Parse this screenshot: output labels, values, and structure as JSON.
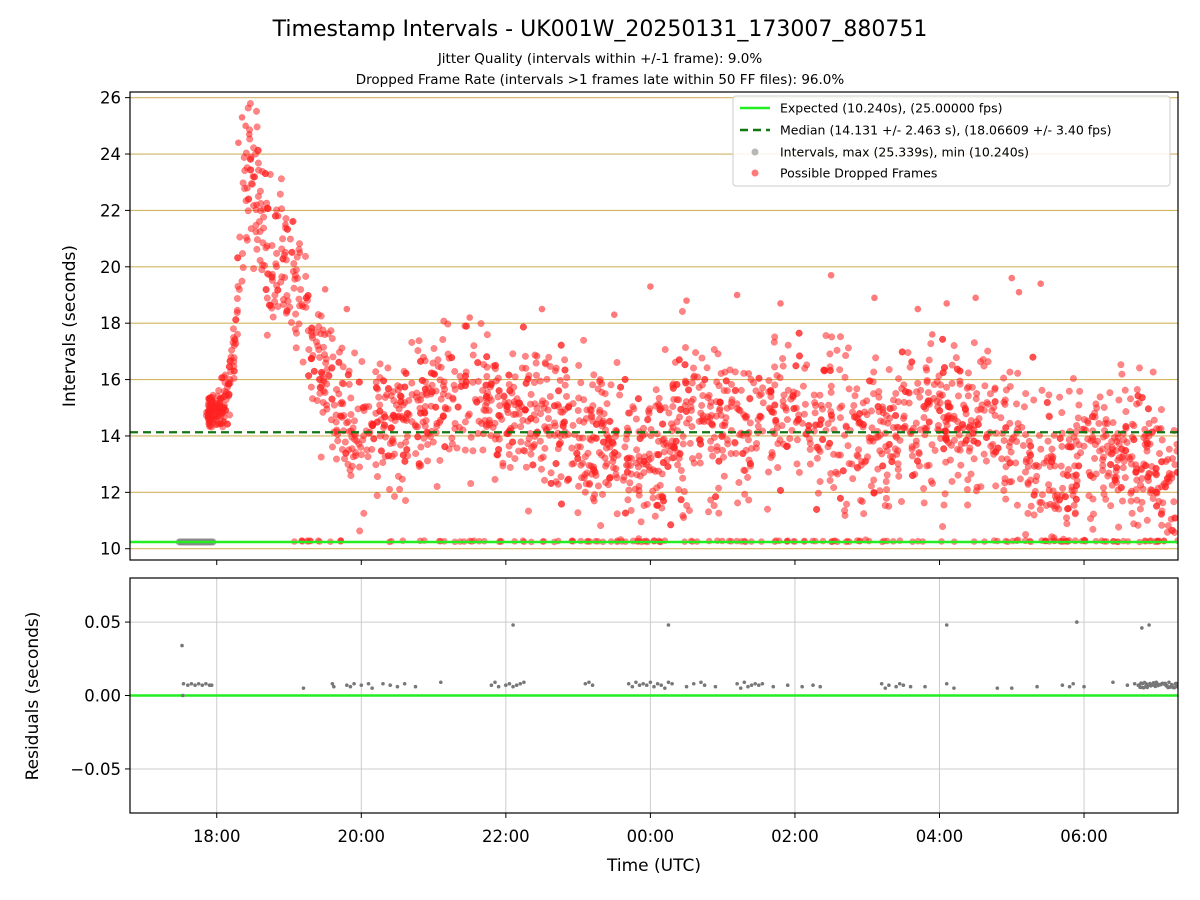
{
  "chart_data": [
    {
      "type": "scatter",
      "title": "Timestamp Intervals - UK001W_20250131_173007_880751",
      "subtitle_lines": [
        "Jitter Quality (intervals within +/-1 frame): 9.0%",
        "Dropped Frame Rate (intervals >1 frames late within 50 FF files): 96.0%"
      ],
      "ylabel": "Intervals (seconds)",
      "xlim": [
        -1.2,
        13.3
      ],
      "ylim": [
        9.6,
        26.2
      ],
      "x_unit": "hours relative to 18:00 UTC on 2025-01-31",
      "yticks": [
        10,
        12,
        14,
        16,
        18,
        20,
        22,
        24,
        26
      ],
      "ytick_labels": [
        "10",
        "12",
        "14",
        "16",
        "18",
        "20",
        "22",
        "24",
        "26"
      ],
      "grid": "horizontal, goldenrod",
      "legend_position": "top-right",
      "legend": [
        {
          "label": "Expected (10.240s), (25.00000 fps)",
          "style": "line",
          "color": "#22ee22"
        },
        {
          "label": "Median (14.131 +/- 2.463 s), (18.06609 +/- 3.40 fps)",
          "style": "dashed",
          "color": "#117711"
        },
        {
          "label": "Intervals, max (25.339s), min (10.240s)",
          "style": "marker",
          "color": "#888888"
        },
        {
          "label": "Possible Dropped Frames",
          "style": "marker",
          "color": "#ff2222"
        }
      ],
      "expected_value": 10.24,
      "median_value": 14.131,
      "normal_interval_span": [
        -0.52,
        -0.05
      ],
      "normal_interval_value": 10.24,
      "dropped_frame_anchors": [
        [
          -0.1,
          14.8
        ],
        [
          0.0,
          15.0
        ],
        [
          0.15,
          15.3
        ],
        [
          0.25,
          17.5
        ],
        [
          0.35,
          21.0
        ],
        [
          0.45,
          24.0
        ],
        [
          0.55,
          22.5
        ],
        [
          0.7,
          20.5
        ],
        [
          0.9,
          20.0
        ],
        [
          1.1,
          19.5
        ],
        [
          1.3,
          18.0
        ],
        [
          1.5,
          16.0
        ],
        [
          1.7,
          15.0
        ],
        [
          2.0,
          14.2
        ],
        [
          2.5,
          14.5
        ],
        [
          3.0,
          15.3
        ],
        [
          3.5,
          15.5
        ],
        [
          4.0,
          14.5
        ],
        [
          4.5,
          14.8
        ],
        [
          5.0,
          14.0
        ],
        [
          5.5,
          13.5
        ],
        [
          6.0,
          13.0
        ],
        [
          6.5,
          14.5
        ],
        [
          7.0,
          14.3
        ],
        [
          7.5,
          14.5
        ],
        [
          8.0,
          15.0
        ],
        [
          8.5,
          14.5
        ],
        [
          9.0,
          14.0
        ],
        [
          9.5,
          14.3
        ],
        [
          10.0,
          14.8
        ],
        [
          10.5,
          14.5
        ],
        [
          11.0,
          13.8
        ],
        [
          11.5,
          13.0
        ],
        [
          12.0,
          13.5
        ],
        [
          12.5,
          13.5
        ],
        [
          13.0,
          13.0
        ],
        [
          13.3,
          12.5
        ]
      ],
      "dropped_frame_spread_anchors": [
        [
          -0.1,
          0.4
        ],
        [
          0.2,
          0.8
        ],
        [
          0.4,
          2.0
        ],
        [
          0.6,
          2.0
        ],
        [
          1.0,
          1.8
        ],
        [
          1.5,
          1.8
        ],
        [
          2.0,
          1.7
        ],
        [
          4.0,
          1.8
        ],
        [
          6.0,
          2.0
        ],
        [
          8.0,
          2.0
        ],
        [
          10.0,
          2.1
        ],
        [
          12.0,
          2.0
        ],
        [
          13.3,
          1.8
        ]
      ],
      "dropped_frame_outliers": [
        [
          0.35,
          25.3
        ],
        [
          0.4,
          25.0
        ],
        [
          0.45,
          24.7
        ],
        [
          0.3,
          24.4
        ],
        [
          0.5,
          23.2
        ],
        [
          0.55,
          22.2
        ],
        [
          0.85,
          21.8
        ],
        [
          0.95,
          21.5
        ],
        [
          1.05,
          21.6
        ],
        [
          1.15,
          20.5
        ],
        [
          1.5,
          19.2
        ],
        [
          1.8,
          18.5
        ],
        [
          3.5,
          18.2
        ],
        [
          4.5,
          18.5
        ],
        [
          5.5,
          18.3
        ],
        [
          6.0,
          19.3
        ],
        [
          6.5,
          18.8
        ],
        [
          7.2,
          19.0
        ],
        [
          7.8,
          18.7
        ],
        [
          8.5,
          19.7
        ],
        [
          9.1,
          18.9
        ],
        [
          9.7,
          18.5
        ],
        [
          10.1,
          18.7
        ],
        [
          10.5,
          18.9
        ],
        [
          11.1,
          19.1
        ],
        [
          11.4,
          19.4
        ],
        [
          11.0,
          19.6
        ],
        [
          9.9,
          17.6
        ]
      ],
      "dropped_frame_count": 2300
    },
    {
      "type": "scatter",
      "ylabel": "Residuals (seconds)",
      "xlabel": "Time (UTC)",
      "xlim": [
        -1.2,
        13.3
      ],
      "ylim": [
        -0.08,
        0.08
      ],
      "yticks": [
        -0.05,
        0.0,
        0.05
      ],
      "ytick_labels": [
        "−0.05",
        "0.00",
        "0.05"
      ],
      "xticks": [
        0,
        2,
        4,
        6,
        8,
        10,
        12
      ],
      "xtick_labels": [
        "18:00",
        "20:00",
        "22:00",
        "00:00",
        "02:00",
        "04:00",
        "06:00"
      ],
      "grid": "both, light gray",
      "zero_line_color": "#22ee22",
      "residual_points": [
        [
          -0.48,
          0.034
        ],
        [
          -0.47,
          0.0
        ],
        [
          -0.46,
          0.008
        ],
        [
          -0.4,
          0.007
        ],
        [
          -0.35,
          0.008
        ],
        [
          -0.3,
          0.007
        ],
        [
          -0.25,
          0.008
        ],
        [
          -0.2,
          0.007
        ],
        [
          -0.15,
          0.008
        ],
        [
          -0.1,
          0.007
        ],
        [
          -0.07,
          0.007
        ],
        [
          1.2,
          0.005
        ],
        [
          1.6,
          0.008
        ],
        [
          1.62,
          0.006
        ],
        [
          1.8,
          0.007
        ],
        [
          1.85,
          0.006
        ],
        [
          1.9,
          0.008
        ],
        [
          2.0,
          0.007
        ],
        [
          2.1,
          0.008
        ],
        [
          2.15,
          0.005
        ],
        [
          2.3,
          0.008
        ],
        [
          2.4,
          0.007
        ],
        [
          2.5,
          0.006
        ],
        [
          2.6,
          0.008
        ],
        [
          2.75,
          0.006
        ],
        [
          3.1,
          0.009
        ],
        [
          3.8,
          0.007
        ],
        [
          3.85,
          0.009
        ],
        [
          3.9,
          0.006
        ],
        [
          4.0,
          0.007
        ],
        [
          4.05,
          0.008
        ],
        [
          4.1,
          0.006
        ],
        [
          4.15,
          0.007
        ],
        [
          4.2,
          0.008
        ],
        [
          4.25,
          0.009
        ],
        [
          4.1,
          0.048
        ],
        [
          5.1,
          0.008
        ],
        [
          5.15,
          0.009
        ],
        [
          5.2,
          0.007
        ],
        [
          5.7,
          0.008
        ],
        [
          5.75,
          0.006
        ],
        [
          5.8,
          0.009
        ],
        [
          5.85,
          0.007
        ],
        [
          5.9,
          0.008
        ],
        [
          5.95,
          0.007
        ],
        [
          6.0,
          0.009
        ],
        [
          6.05,
          0.006
        ],
        [
          6.1,
          0.008
        ],
        [
          6.15,
          0.007
        ],
        [
          6.2,
          0.005
        ],
        [
          6.25,
          0.009
        ],
        [
          6.3,
          0.008
        ],
        [
          6.5,
          0.006
        ],
        [
          6.6,
          0.008
        ],
        [
          6.7,
          0.009
        ],
        [
          6.75,
          0.007
        ],
        [
          6.9,
          0.006
        ],
        [
          6.25,
          0.048
        ],
        [
          7.2,
          0.008
        ],
        [
          7.25,
          0.005
        ],
        [
          7.3,
          0.009
        ],
        [
          7.35,
          0.006
        ],
        [
          7.4,
          0.007
        ],
        [
          7.45,
          0.008
        ],
        [
          7.5,
          0.007
        ],
        [
          7.55,
          0.008
        ],
        [
          7.7,
          0.006
        ],
        [
          7.9,
          0.007
        ],
        [
          8.1,
          0.006
        ],
        [
          8.25,
          0.007
        ],
        [
          8.35,
          0.006
        ],
        [
          9.2,
          0.008
        ],
        [
          9.25,
          0.005
        ],
        [
          9.3,
          0.007
        ],
        [
          9.4,
          0.006
        ],
        [
          9.45,
          0.008
        ],
        [
          9.5,
          0.007
        ],
        [
          9.6,
          0.006
        ],
        [
          9.8,
          0.006
        ],
        [
          10.1,
          0.008
        ],
        [
          10.2,
          0.005
        ],
        [
          10.1,
          0.048
        ],
        [
          11.7,
          0.007
        ],
        [
          11.8,
          0.006
        ],
        [
          12.0,
          0.006
        ],
        [
          12.4,
          0.009
        ],
        [
          12.6,
          0.007
        ],
        [
          12.7,
          0.008
        ],
        [
          13.0,
          0.009
        ],
        [
          12.9,
          0.048
        ],
        [
          11.9,
          0.05
        ],
        [
          12.8,
          0.046
        ],
        [
          11.85,
          0.008
        ],
        [
          11.0,
          0.005
        ],
        [
          11.35,
          0.006
        ],
        [
          10.8,
          0.005
        ]
      ],
      "residual_cluster_span": [
        12.75,
        13.3
      ],
      "residual_cluster_value": 0.007
    }
  ]
}
